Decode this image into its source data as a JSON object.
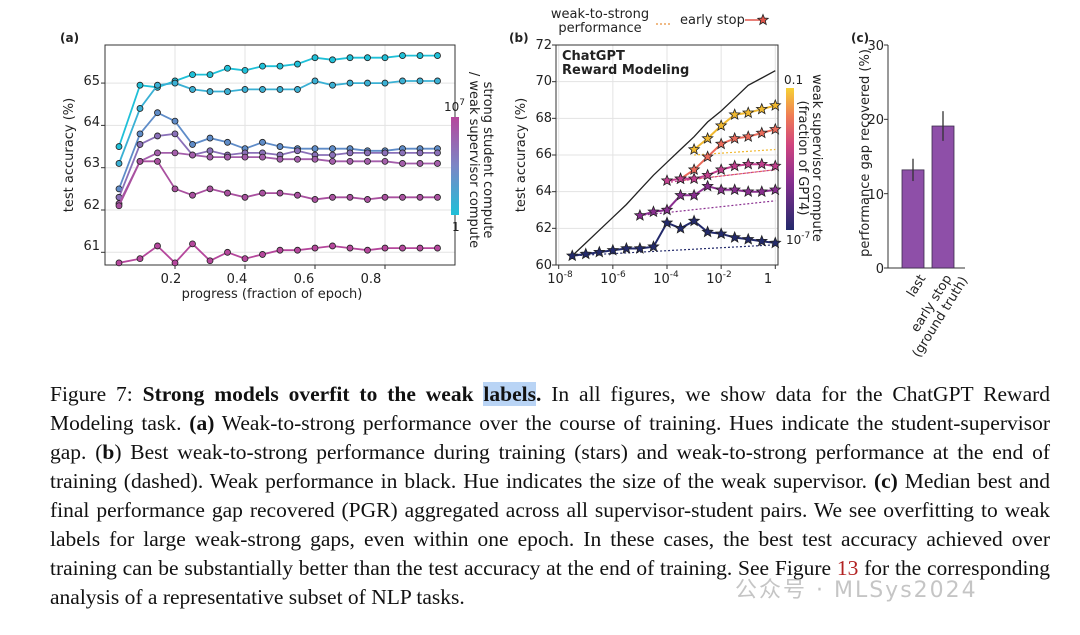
{
  "colors": {
    "purple_bar": "#8e4fa8",
    "cyan": "#1fc0d8",
    "magenta": "#b5479c",
    "navy": "#232a6b",
    "highlight": "#b9d4f5",
    "ref": "#b22222"
  },
  "figure": {
    "panel_a": {
      "label": "(a)",
      "xlabel": "progress (fraction of epoch)",
      "ylabel": "test accuracy (%)",
      "x_ticks": [
        "0.2",
        "0.4",
        "0.6",
        "0.8"
      ],
      "y_ticks": [
        "61",
        "62",
        "63",
        "64",
        "65"
      ],
      "colorbar_label_1": "strong student compute",
      "colorbar_label_2": "/ weak supervisor compute",
      "colorbar_top": "10",
      "colorbar_top_exp": "7",
      "colorbar_bottom": "1"
    },
    "panel_b": {
      "label": "(b)",
      "legend_weak_1": "weak-to-strong",
      "legend_weak_2": "performance",
      "legend_early": "early stop",
      "title_1": "ChatGPT",
      "title_2": "Reward Modeling",
      "ylabel": "test accuracy (%)",
      "y_ticks": [
        "60",
        "62",
        "64",
        "66",
        "68",
        "70",
        "72"
      ],
      "x_ticks": [
        {
          "base": "10",
          "exp": "-8"
        },
        {
          "base": "10",
          "exp": "-6"
        },
        {
          "base": "10",
          "exp": "-4"
        },
        {
          "base": "10",
          "exp": "-2"
        },
        {
          "base": "1",
          "exp": ""
        }
      ],
      "colorbar_label_1": "weak supervisor compute",
      "colorbar_label_2": "(fraction of GPT4)",
      "colorbar_top": "0.1",
      "colorbar_bottom": "10",
      "colorbar_bottom_exp": "-7"
    },
    "panel_c": {
      "label": "(c)",
      "ylabel": "performance gap recovered (%)",
      "y_ticks": [
        "0",
        "10",
        "20",
        "30"
      ],
      "bar_labels": [
        "last",
        "early stop",
        "(ground truth)"
      ]
    }
  },
  "chart_data": [
    {
      "panel": "a",
      "type": "line",
      "title": "",
      "xlabel": "progress (fraction of epoch)",
      "ylabel": "test accuracy (%)",
      "xlim": [
        0.0,
        1.0
      ],
      "ylim": [
        60.7,
        65.9
      ],
      "grid": true,
      "series": [
        {
          "color": "#1fc0d8",
          "x": [
            0.04,
            0.1,
            0.15,
            0.2,
            0.25,
            0.3,
            0.35,
            0.4,
            0.45,
            0.5,
            0.55,
            0.6,
            0.65,
            0.7,
            0.75,
            0.8,
            0.85,
            0.9,
            0.95
          ],
          "y": [
            63.5,
            64.95,
            64.9,
            65.05,
            65.2,
            65.2,
            65.35,
            65.3,
            65.4,
            65.4,
            65.45,
            65.6,
            65.55,
            65.6,
            65.6,
            65.6,
            65.65,
            65.65,
            65.65
          ]
        },
        {
          "color": "#3ab0d4",
          "x": [
            0.04,
            0.1,
            0.15,
            0.2,
            0.25,
            0.3,
            0.35,
            0.4,
            0.45,
            0.5,
            0.55,
            0.6,
            0.65,
            0.7,
            0.75,
            0.8,
            0.85,
            0.9,
            0.95
          ],
          "y": [
            63.1,
            64.4,
            64.95,
            65.0,
            64.85,
            64.8,
            64.8,
            64.85,
            64.85,
            64.85,
            64.85,
            65.05,
            64.95,
            65.0,
            65.0,
            65.0,
            65.05,
            65.05,
            65.05
          ]
        },
        {
          "color": "#5f8cc8",
          "x": [
            0.04,
            0.1,
            0.15,
            0.2,
            0.25,
            0.3,
            0.35,
            0.4,
            0.45,
            0.5,
            0.55,
            0.6,
            0.65,
            0.7,
            0.75,
            0.8,
            0.85,
            0.9,
            0.95
          ],
          "y": [
            62.5,
            63.8,
            64.3,
            64.1,
            63.55,
            63.7,
            63.6,
            63.45,
            63.6,
            63.5,
            63.45,
            63.45,
            63.45,
            63.45,
            63.4,
            63.4,
            63.45,
            63.45,
            63.45
          ]
        },
        {
          "color": "#8a70b8",
          "x": [
            0.04,
            0.1,
            0.15,
            0.2,
            0.25,
            0.3,
            0.35,
            0.4,
            0.45,
            0.5,
            0.55,
            0.6,
            0.65,
            0.7,
            0.75,
            0.8,
            0.85,
            0.9,
            0.95
          ],
          "y": [
            62.3,
            63.55,
            63.75,
            63.8,
            63.3,
            63.4,
            63.3,
            63.35,
            63.35,
            63.3,
            63.4,
            63.3,
            63.3,
            63.35,
            63.35,
            63.35,
            63.35,
            63.35,
            63.35
          ]
        },
        {
          "color": "#a45eab",
          "x": [
            0.04,
            0.1,
            0.15,
            0.2,
            0.25,
            0.3,
            0.35,
            0.4,
            0.45,
            0.5,
            0.55,
            0.6,
            0.65,
            0.7,
            0.75,
            0.8,
            0.85,
            0.9,
            0.95
          ],
          "y": [
            62.15,
            63.15,
            63.35,
            63.35,
            63.3,
            63.25,
            63.25,
            63.25,
            63.25,
            63.2,
            63.2,
            63.2,
            63.15,
            63.15,
            63.15,
            63.15,
            63.1,
            63.1,
            63.1
          ]
        },
        {
          "color": "#a9509f",
          "x": [
            0.04,
            0.1,
            0.15,
            0.2,
            0.25,
            0.3,
            0.35,
            0.4,
            0.45,
            0.5,
            0.55,
            0.6,
            0.65,
            0.7,
            0.75,
            0.8,
            0.85,
            0.9,
            0.95
          ],
          "y": [
            62.1,
            63.15,
            63.15,
            62.5,
            62.35,
            62.5,
            62.4,
            62.3,
            62.4,
            62.4,
            62.35,
            62.25,
            62.3,
            62.3,
            62.25,
            62.3,
            62.3,
            62.3,
            62.3
          ]
        },
        {
          "color": "#b5479c",
          "x": [
            0.04,
            0.1,
            0.15,
            0.2,
            0.25,
            0.3,
            0.35,
            0.4,
            0.45,
            0.5,
            0.55,
            0.6,
            0.65,
            0.7,
            0.75,
            0.8,
            0.85,
            0.9,
            0.95
          ],
          "y": [
            60.75,
            60.85,
            61.15,
            60.75,
            61.2,
            60.8,
            61.0,
            60.85,
            60.95,
            61.05,
            61.05,
            61.1,
            61.15,
            61.1,
            61.05,
            61.1,
            61.1,
            61.1,
            61.1
          ]
        }
      ]
    },
    {
      "panel": "b",
      "type": "line",
      "title": "ChatGPT Reward Modeling",
      "ylabel": "test accuracy (%)",
      "x_scale": "log",
      "xlim_log10": [
        -8.1,
        0.1
      ],
      "ylim": [
        60,
        72
      ],
      "grid": true,
      "weak_performance": {
        "color": "#222222",
        "log10_x": [
          -7.5,
          -7.0,
          -6.5,
          -6.0,
          -5.5,
          -5.0,
          -4.5,
          -4.0,
          -3.5,
          -3.0,
          -2.5,
          -2.0,
          -1.5,
          -1.0,
          -0.5,
          0.0
        ],
        "y": [
          60.5,
          61.2,
          61.9,
          62.6,
          63.3,
          64.1,
          64.9,
          65.6,
          66.3,
          67.0,
          67.8,
          68.4,
          69.1,
          69.8,
          70.2,
          70.6
        ]
      },
      "series": [
        {
          "color": "#f0b830",
          "log10_x": [
            -3.0,
            -2.5,
            -2.0,
            -1.5,
            -1.0,
            -0.5,
            0.0
          ],
          "early_stop": [
            66.3,
            66.9,
            67.6,
            68.2,
            68.3,
            68.5,
            68.7
          ]
        },
        {
          "color": "#ea6a5a",
          "log10_x": [
            -3.5,
            -3.0,
            -2.5,
            -2.0,
            -1.5,
            -1.0,
            -0.5,
            0.0
          ],
          "early_stop": [
            64.7,
            65.2,
            65.9,
            66.6,
            66.9,
            67.0,
            67.2,
            67.4
          ]
        },
        {
          "color": "#c23f8e",
          "log10_x": [
            -4.0,
            -3.5,
            -3.0,
            -2.5,
            -2.0,
            -1.5,
            -1.0,
            -0.5,
            0.0
          ],
          "early_stop": [
            64.6,
            64.7,
            64.7,
            64.9,
            65.2,
            65.4,
            65.5,
            65.5,
            65.4
          ]
        },
        {
          "color": "#8a2f90",
          "log10_x": [
            -5.0,
            -4.5,
            -4.0,
            -3.5,
            -3.0,
            -2.5,
            -2.0,
            -1.5,
            -1.0,
            -0.5,
            0.0
          ],
          "early_stop": [
            62.7,
            62.9,
            63.0,
            63.8,
            63.8,
            64.3,
            64.1,
            64.1,
            64.0,
            64.0,
            64.1
          ]
        },
        {
          "color": "#232a6b",
          "log10_x": [
            -7.5,
            -7.0,
            -6.5,
            -6.0,
            -5.5,
            -5.0,
            -4.5,
            -4.0,
            -3.5,
            -3.0,
            -2.5,
            -2.0,
            -1.5,
            -1.0,
            -0.5,
            0.0
          ],
          "early_stop": [
            60.5,
            60.6,
            60.7,
            60.8,
            60.9,
            60.9,
            61.0,
            62.3,
            62.0,
            62.4,
            61.8,
            61.7,
            61.5,
            61.4,
            61.3,
            61.2
          ]
        }
      ],
      "dashed_final": [
        {
          "color": "#f0b830",
          "log10_x": [
            -3.0,
            0.0
          ],
          "y": [
            66.0,
            66.3
          ]
        },
        {
          "color": "#ea6a5a",
          "log10_x": [
            -3.5,
            0.0
          ],
          "y": [
            64.6,
            65.2
          ]
        },
        {
          "color": "#c23f8e",
          "log10_x": [
            -4.0,
            0.0
          ],
          "y": [
            64.5,
            65.2
          ]
        },
        {
          "color": "#8a2f90",
          "log10_x": [
            -5.0,
            0.0
          ],
          "y": [
            62.7,
            63.5
          ]
        },
        {
          "color": "#232a6b",
          "log10_x": [
            -7.5,
            0.0
          ],
          "y": [
            60.5,
            61.1
          ]
        }
      ]
    },
    {
      "panel": "c",
      "type": "bar",
      "ylabel": "performance gap recovered (%)",
      "categories": [
        "last",
        "early stop (ground truth)"
      ],
      "values": [
        13.2,
        19.1
      ],
      "error": [
        1.5,
        2.0
      ],
      "ylim": [
        0,
        30
      ]
    }
  ],
  "caption": {
    "fig_label": "Figure 7:",
    "title_a": "Strong models overfit to the weak",
    "title_hl": "labels",
    "title_end": ".",
    "s1": " In all figures, we show data for the ChatGPT Reward Modeling task. ",
    "a": "(a)",
    "s2": " Weak-to-strong performance over the course of training. Hues indicate the student-supervisor gap. ",
    "b1": "(",
    "b2": "b",
    "b3": ")",
    "s3": " Best weak-to-strong performance during training (stars) and weak-to-strong performance at the end of training (dashed). Weak performance in black. Hue indicates the size of the weak supervisor. ",
    "c": "(c)",
    "s4": " Median best and final performance gap recovered (PGR) aggregated across all supervisor-student pairs. We see overfitting to weak labels for large weak-strong gaps, even within one epoch. In these cases, the best test accuracy achieved over training can be substantially better than the test accuracy at the end of training. See ",
    "fig_ref_1": "Figure",
    "fig_ref_num": "13",
    "s5": " for the corresponding analysis of a representative subset of NLP tasks."
  },
  "watermark": "公众号 · MLSys2024"
}
